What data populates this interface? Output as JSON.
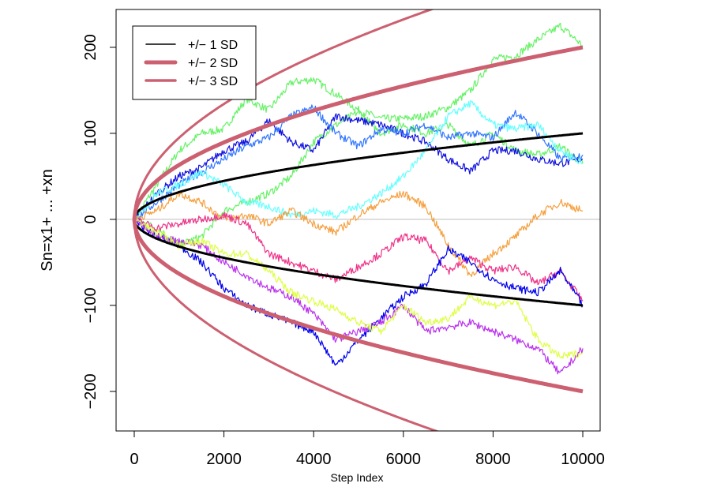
{
  "chart_data": {
    "type": "line",
    "title": "",
    "xlabel": "Step Index",
    "ylabel": "Sn=x1+ ... +xn",
    "xlim": [
      -405,
      10387
    ],
    "ylim": [
      -246,
      244
    ],
    "xticks": [
      0,
      2000,
      4000,
      6000,
      8000,
      10000
    ],
    "yticks": [
      -200,
      -100,
      0,
      100,
      200
    ],
    "grid": false,
    "zero_line_color": "#bbbbbb",
    "legend": {
      "placement": "top-left",
      "entries": [
        {
          "label": "+/− 1 SD",
          "k": 1,
          "color": "#000000",
          "weight": "thin"
        },
        {
          "label": "+/− 2 SD",
          "k": 2,
          "color": "#cc6070",
          "weight": "thick"
        },
        {
          "label": "+/− 3 SD",
          "k": 3,
          "color": "#cc6070",
          "weight": "medium"
        }
      ]
    },
    "bands": [
      {
        "k": 1,
        "color": "#000000"
      },
      {
        "k": 2,
        "color": "#cc6070"
      },
      {
        "k": 3,
        "color": "#cc6070"
      }
    ],
    "x": [
      0,
      500,
      1000,
      1500,
      2000,
      2500,
      3000,
      3500,
      4000,
      4500,
      5000,
      5500,
      6000,
      6500,
      7000,
      7500,
      8000,
      8500,
      9000,
      9500,
      10000
    ],
    "series": [
      {
        "color": "#66f266",
        "values": [
          0,
          40,
          80,
          100,
          105,
          140,
          127,
          159,
          163,
          145,
          127,
          117,
          117,
          120,
          130,
          150,
          186,
          190,
          209,
          225,
          202
        ]
      },
      {
        "color": "#66f266",
        "values": [
          0,
          -10,
          -30,
          -20,
          10,
          20,
          30,
          50,
          90,
          110,
          125,
          100,
          110,
          100,
          110,
          85,
          100,
          80,
          75,
          85,
          65
        ]
      },
      {
        "color": "#1010e0",
        "values": [
          0,
          30,
          50,
          60,
          80,
          90,
          115,
          90,
          80,
          120,
          115,
          110,
          100,
          90,
          70,
          56,
          80,
          80,
          70,
          65,
          70
        ]
      },
      {
        "color": "#3377ff",
        "values": [
          0,
          20,
          40,
          55,
          70,
          85,
          95,
          120,
          130,
          100,
          85,
          105,
          100,
          110,
          95,
          100,
          95,
          125,
          100,
          70,
          75
        ]
      },
      {
        "color": "#66ffff",
        "values": [
          0,
          30,
          40,
          55,
          40,
          20,
          15,
          5,
          10,
          5,
          15,
          30,
          50,
          80,
          120,
          135,
          110,
          105,
          110,
          80,
          65
        ]
      },
      {
        "color": "#f5a040",
        "values": [
          0,
          10,
          30,
          20,
          0,
          5,
          -5,
          10,
          -5,
          -15,
          5,
          20,
          30,
          15,
          -30,
          -65,
          -40,
          -20,
          5,
          20,
          10
        ]
      },
      {
        "color": "#ee3388",
        "values": [
          0,
          -10,
          -5,
          0,
          5,
          -5,
          -40,
          -50,
          -60,
          -70,
          -55,
          -40,
          -20,
          -25,
          -60,
          -45,
          -60,
          -55,
          -75,
          -60,
          -95
        ]
      },
      {
        "color": "#0000ee",
        "values": [
          0,
          -20,
          -30,
          -50,
          -80,
          -100,
          -110,
          -120,
          -130,
          -170,
          -140,
          -115,
          -90,
          -75,
          -35,
          -50,
          -70,
          -80,
          -85,
          -60,
          -100
        ]
      },
      {
        "color": "#bb33ee",
        "values": [
          0,
          -20,
          -25,
          -30,
          -50,
          -65,
          -80,
          -90,
          -110,
          -140,
          -130,
          -120,
          -100,
          -130,
          -125,
          -120,
          -130,
          -140,
          -150,
          -180,
          -150
        ]
      },
      {
        "color": "#ddff44",
        "values": [
          0,
          -15,
          -30,
          -25,
          -40,
          -40,
          -60,
          -85,
          -95,
          -105,
          -120,
          -130,
          -100,
          -120,
          -115,
          -90,
          -100,
          -95,
          -140,
          -160,
          -155
        ]
      }
    ]
  }
}
